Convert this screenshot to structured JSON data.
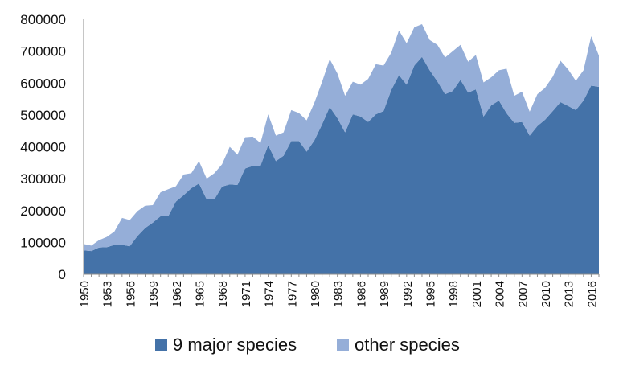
{
  "chart_data": {
    "type": "area",
    "stacked": true,
    "title": "",
    "xlabel": "",
    "ylabel": "",
    "ylim": [
      0,
      800000
    ],
    "yticks": [
      0,
      100000,
      200000,
      300000,
      400000,
      500000,
      600000,
      700000,
      800000
    ],
    "xticks": [
      1950,
      1953,
      1956,
      1959,
      1962,
      1965,
      1968,
      1971,
      1974,
      1977,
      1980,
      1983,
      1986,
      1989,
      1992,
      1995,
      1998,
      2001,
      2004,
      2007,
      2010,
      2013,
      2016
    ],
    "grid": false,
    "legend_position": "bottom",
    "x": [
      1950,
      1951,
      1952,
      1953,
      1954,
      1955,
      1956,
      1957,
      1958,
      1959,
      1960,
      1961,
      1962,
      1963,
      1964,
      1965,
      1966,
      1967,
      1968,
      1969,
      1970,
      1971,
      1972,
      1973,
      1974,
      1975,
      1976,
      1977,
      1978,
      1979,
      1980,
      1981,
      1982,
      1983,
      1984,
      1985,
      1986,
      1987,
      1988,
      1989,
      1990,
      1991,
      1992,
      1993,
      1994,
      1995,
      1996,
      1997,
      1998,
      1999,
      2000,
      2001,
      2002,
      2003,
      2004,
      2005,
      2006,
      2007,
      2008,
      2009,
      2010,
      2011,
      2012,
      2013,
      2014,
      2015,
      2016,
      2017
    ],
    "series": [
      {
        "name": "9 major species",
        "color": "#4472a8",
        "values": [
          75000,
          73000,
          84000,
          85000,
          92000,
          92000,
          88000,
          120000,
          145000,
          162000,
          182000,
          182000,
          228000,
          248000,
          270000,
          285000,
          235000,
          235000,
          275000,
          282000,
          280000,
          332000,
          340000,
          340000,
          405000,
          355000,
          372000,
          418000,
          418000,
          385000,
          420000,
          470000,
          525000,
          490000,
          445000,
          502000,
          495000,
          478000,
          502000,
          512000,
          578000,
          625000,
          595000,
          655000,
          682000,
          640000,
          605000,
          565000,
          575000,
          610000,
          570000,
          580000,
          495000,
          530000,
          545000,
          505000,
          475000,
          478000,
          435000,
          465000,
          485000,
          512000,
          540000,
          528000,
          515000,
          545000,
          592000,
          588000
        ]
      },
      {
        "name": "other species",
        "color": "#95aed8",
        "values": [
          20000,
          17000,
          23000,
          32000,
          42000,
          85000,
          82000,
          78000,
          70000,
          55000,
          75000,
          85000,
          48000,
          65000,
          47000,
          70000,
          65000,
          82000,
          70000,
          118000,
          95000,
          98000,
          92000,
          72000,
          97000,
          80000,
          73000,
          97000,
          88000,
          98000,
          118000,
          133000,
          150000,
          140000,
          115000,
          102000,
          100000,
          135000,
          157000,
          143000,
          117000,
          140000,
          130000,
          120000,
          103000,
          95000,
          115000,
          115000,
          125000,
          110000,
          97000,
          108000,
          107000,
          88000,
          95000,
          140000,
          85000,
          95000,
          75000,
          100000,
          100000,
          108000,
          130000,
          115000,
          92000,
          95000,
          155000,
          98000
        ]
      }
    ]
  }
}
